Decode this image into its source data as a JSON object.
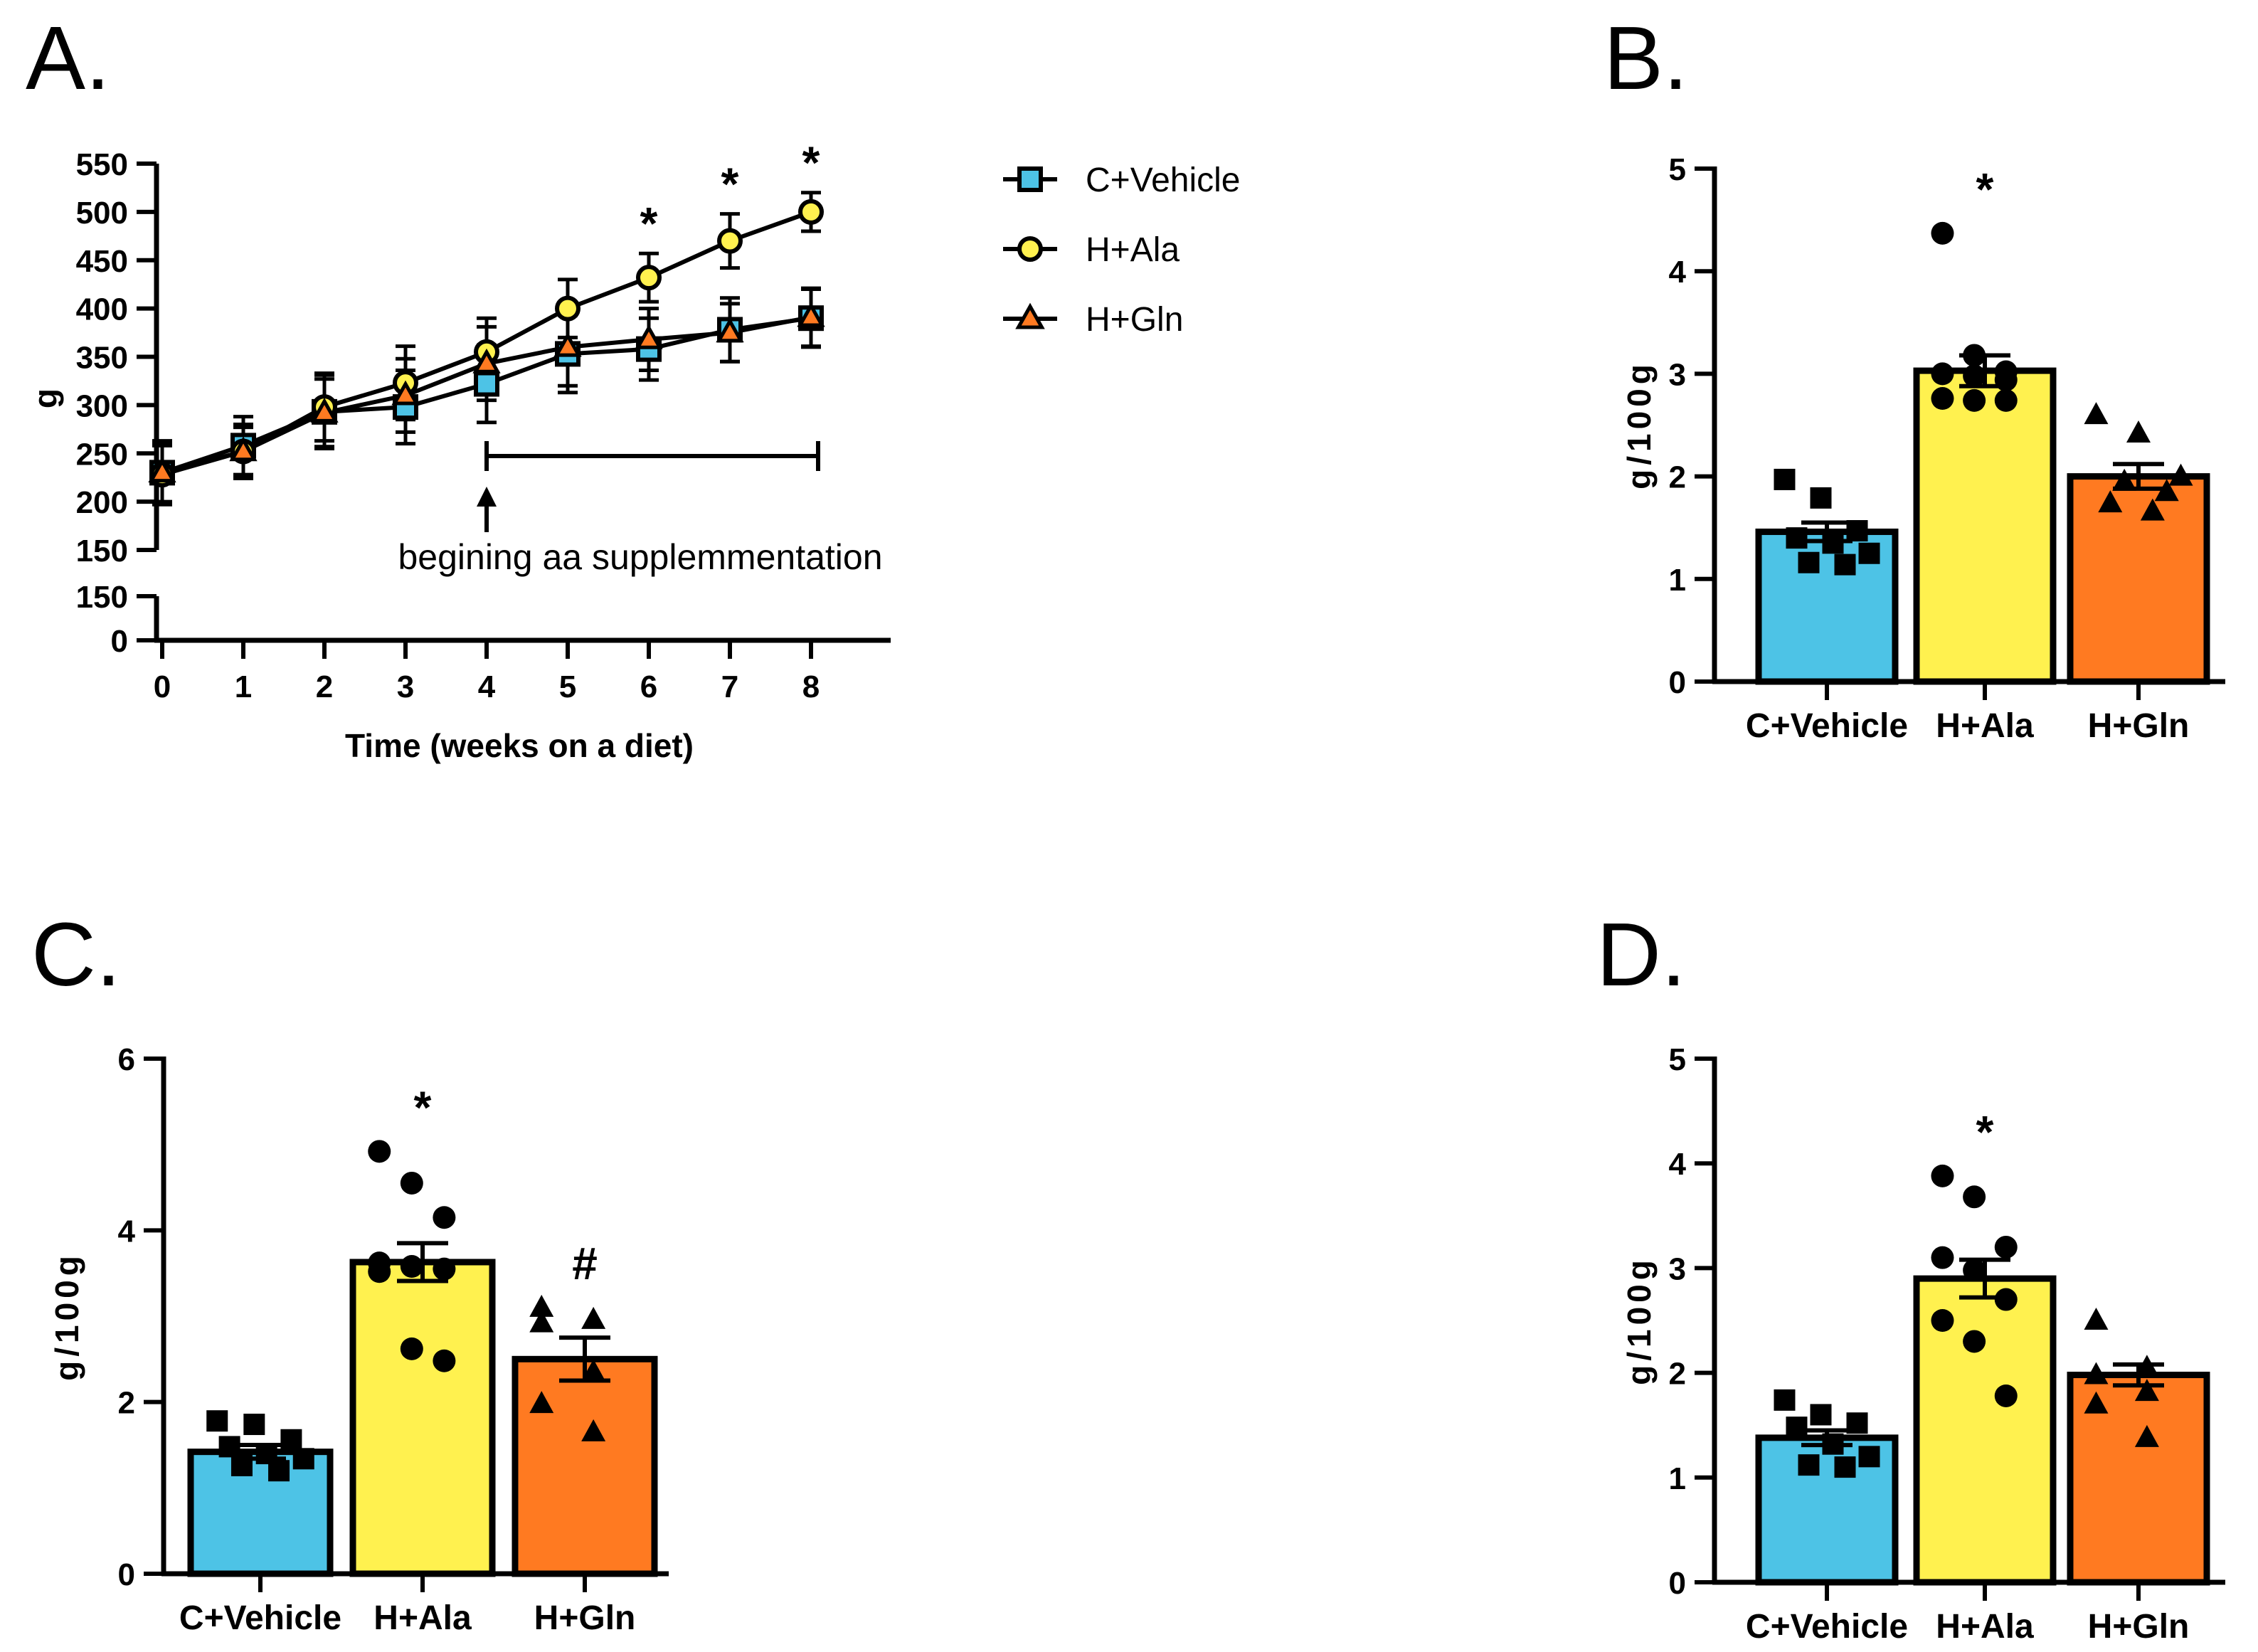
{
  "colors": {
    "vehicle": "#4DC3E6",
    "ala": "#FFF14F",
    "gln": "#FF7A21",
    "axis": "#000000"
  },
  "legend": [
    "C+Vehicle",
    "H+Ala",
    "H+Gln"
  ],
  "chart_data": [
    {
      "panel": "A.",
      "type": "line",
      "xlabel": "Time (weeks on a diet)",
      "ylabel": "g",
      "x": [
        0,
        1,
        2,
        3,
        4,
        5,
        6,
        7,
        8
      ],
      "x_ticks": [
        "0",
        "1",
        "2",
        "3",
        "4",
        "5",
        "6",
        "7",
        "8"
      ],
      "y_ticks": [
        "550",
        "500",
        "450",
        "400",
        "350",
        "300",
        "250",
        "200",
        "150"
      ],
      "y_ticks_lower": [
        "150",
        "0"
      ],
      "ylim": [
        150,
        550
      ],
      "broken_axis": true,
      "series": [
        {
          "name": "C+Vehicle",
          "marker": "square",
          "values": [
            230,
            258,
            293,
            298,
            322,
            353,
            358,
            378,
            390
          ],
          "errors": [
            33,
            30,
            38,
            38,
            40,
            40,
            32,
            33,
            30
          ]
        },
        {
          "name": "H+Ala",
          "marker": "circle",
          "values": [
            228,
            252,
            298,
            323,
            355,
            400,
            432,
            470,
            500
          ],
          "errors": [
            30,
            28,
            35,
            38,
            35,
            30,
            25,
            28,
            20
          ]
        },
        {
          "name": "H+Gln",
          "marker": "triangle",
          "values": [
            230,
            252,
            292,
            310,
            343,
            360,
            368,
            375,
            391
          ],
          "errors": [
            30,
            25,
            35,
            38,
            38,
            40,
            32,
            30,
            30
          ]
        }
      ],
      "significance": [
        {
          "x": 6,
          "label": "*"
        },
        {
          "x": 7,
          "label": "*"
        },
        {
          "x": 8,
          "label": "*"
        }
      ],
      "annotation": "begining aa supplemmentation",
      "bracket_x": [
        4,
        8
      ]
    },
    {
      "panel": "B.",
      "type": "bar",
      "ylabel": "g/100g",
      "categories": [
        "C+Vehicle",
        "H+Ala",
        "H+Gln"
      ],
      "values": [
        1.46,
        3.03,
        2.0
      ],
      "errors": [
        0.09,
        0.15,
        0.12
      ],
      "ylim": [
        0,
        5
      ],
      "y_ticks": [
        "0",
        "1",
        "2",
        "3",
        "4",
        "5"
      ],
      "points": [
        [
          1.97,
          1.79,
          1.47,
          1.4,
          1.35,
          1.25,
          1.16,
          1.14
        ],
        [
          4.37,
          3.18,
          3.02,
          3.0,
          2.98,
          2.94,
          2.76,
          2.74,
          2.74
        ],
        [
          2.6,
          2.42,
          2.0,
          1.95,
          1.85,
          1.74,
          1.66
        ]
      ],
      "significance": [
        {
          "category": "H+Ala",
          "label": "*"
        }
      ]
    },
    {
      "panel": "C.",
      "type": "bar",
      "ylabel": "g/100g",
      "categories": [
        "C+Vehicle",
        "H+Ala",
        "H+Gln"
      ],
      "values": [
        1.42,
        3.63,
        2.5
      ],
      "errors": [
        0.08,
        0.22,
        0.25
      ],
      "ylim": [
        0,
        6
      ],
      "y_ticks": [
        "0",
        "2",
        "4",
        "6"
      ],
      "points": [
        [
          1.78,
          1.74,
          1.56,
          1.48,
          1.4,
          1.34,
          1.26,
          1.2
        ],
        [
          4.92,
          4.55,
          4.15,
          3.62,
          3.58,
          3.55,
          3.52,
          2.62,
          2.48
        ],
        [
          3.1,
          2.96,
          2.92,
          2.35,
          1.98,
          1.65
        ]
      ],
      "significance": [
        {
          "category": "H+Ala",
          "label": "*"
        },
        {
          "category": "H+Gln",
          "label": "#"
        }
      ]
    },
    {
      "panel": "D.",
      "type": "bar",
      "ylabel": "g/100g",
      "categories": [
        "C+Vehicle",
        "H+Ala",
        "H+Gln"
      ],
      "values": [
        1.38,
        2.9,
        1.98
      ],
      "errors": [
        0.07,
        0.18,
        0.1
      ],
      "ylim": [
        0,
        5
      ],
      "y_ticks": [
        "0",
        "1",
        "2",
        "3",
        "4",
        "5"
      ],
      "points": [
        [
          1.74,
          1.6,
          1.52,
          1.48,
          1.32,
          1.2,
          1.12,
          1.1
        ],
        [
          3.88,
          3.68,
          3.2,
          3.1,
          2.98,
          2.7,
          2.5,
          2.3,
          1.78
        ],
        [
          2.5,
          2.05,
          1.98,
          1.82,
          1.7,
          1.38
        ]
      ],
      "significance": [
        {
          "category": "H+Ala",
          "label": "*"
        }
      ]
    }
  ]
}
